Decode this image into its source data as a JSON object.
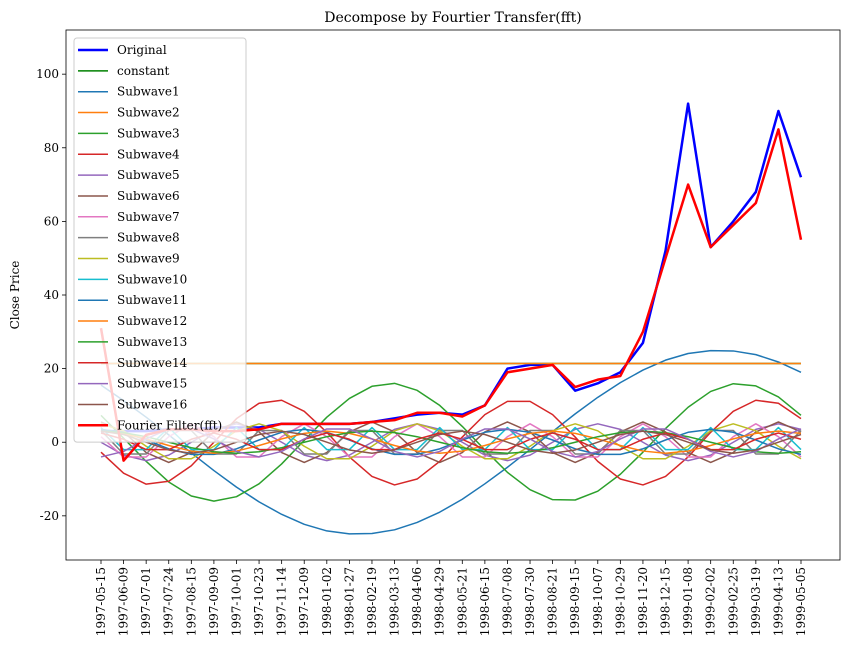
{
  "chart_data": {
    "type": "line",
    "title": "Decompose by Fourtier Transfer(fft)",
    "y_label": "Close Price",
    "categories": [
      "1997-05-15",
      "1997-06-09",
      "1997-07-01",
      "1997-07-24",
      "1997-08-15",
      "1997-09-09",
      "1997-10-01",
      "1997-10-23",
      "1997-11-14",
      "1997-12-09",
      "1998-01-02",
      "1998-01-27",
      "1998-02-19",
      "1998-03-13",
      "1998-04-06",
      "1998-04-29",
      "1998-05-21",
      "1998-06-15",
      "1998-07-08",
      "1998-07-30",
      "1998-08-21",
      "1998-09-15",
      "1998-10-07",
      "1998-10-29",
      "1998-11-20",
      "1998-12-15",
      "1999-01-08",
      "1999-02-02",
      "1999-02-25",
      "1999-03-19",
      "1999-04-13",
      "1999-05-05"
    ],
    "ylim": [
      -32,
      112
    ],
    "yticks": [
      -20,
      0,
      20,
      40,
      60,
      80,
      100
    ],
    "legend": "upper left",
    "series": [
      {
        "name": "Original",
        "color": "blue",
        "linewidth": 2.5,
        "values": [
          3,
          3,
          3,
          3.5,
          3.5,
          4,
          4,
          4,
          5,
          5,
          5,
          5,
          5.5,
          6.5,
          7.5,
          8,
          7.5,
          10,
          20,
          21,
          21,
          14,
          16,
          19,
          27,
          52,
          92,
          53,
          60,
          68,
          90,
          72
        ]
      },
      {
        "name": "constant",
        "color": "green",
        "linewidth": 1.5,
        "values": [
          21.4,
          21.4,
          21.4,
          21.4,
          21.4,
          21.4,
          21.4,
          21.4,
          21.4,
          21.4,
          21.4,
          21.4,
          21.4,
          21.4,
          21.4,
          21.4,
          21.4,
          21.4,
          21.4,
          21.4,
          21.4,
          21.4,
          21.4,
          21.4,
          21.4,
          21.4,
          21.4,
          21.4,
          21.4,
          21.4,
          21.4,
          21.4
        ]
      },
      {
        "name": "Subwave1",
        "color": "#1f77b4",
        "linewidth": 1.5,
        "values": [
          15.5,
          11.3,
          6.8,
          2.0,
          -2.9,
          -7.7,
          -12.2,
          -16.2,
          -19.6,
          -22.3,
          -24.1,
          -24.9,
          -24.8,
          -23.8,
          -21.8,
          -19.0,
          -15.5,
          -11.3,
          -6.8,
          -2.0,
          2.9,
          7.7,
          12.2,
          16.2,
          19.6,
          22.3,
          24.1,
          24.9,
          24.8,
          23.8,
          21.8,
          19.0
        ]
      },
      {
        "name": "Subwave2",
        "color": "#ff7f0e",
        "linewidth": 1.5,
        "values": [
          21.4,
          21.4,
          21.4,
          21.4,
          21.4,
          21.4,
          21.4,
          21.4,
          21.4,
          21.4,
          21.4,
          21.4,
          21.4,
          21.4,
          21.4,
          21.4,
          21.4,
          21.4,
          21.4,
          21.4,
          21.4,
          21.4,
          21.4,
          21.4,
          21.4,
          21.4,
          21.4,
          21.4,
          21.4,
          21.4,
          21.4,
          21.4
        ]
      },
      {
        "name": "Subwave3",
        "color": "#2ca02c",
        "linewidth": 1.5,
        "values": [
          7.3,
          1.1,
          -5.2,
          -10.8,
          -14.6,
          -16.0,
          -14.8,
          -11.3,
          -5.9,
          0.5,
          6.8,
          11.9,
          15.2,
          16.0,
          14.1,
          10.0,
          4.3,
          -2.1,
          -8.2,
          -12.9,
          -15.6,
          -15.7,
          -13.3,
          -8.7,
          -2.7,
          3.7,
          9.5,
          13.8,
          15.9,
          15.3,
          12.3,
          7.3
        ]
      },
      {
        "name": "Subwave4",
        "color": "#d62728",
        "linewidth": 1.5,
        "values": [
          -2.7,
          -8.4,
          -11.4,
          -10.6,
          -6.4,
          0.0,
          6.4,
          10.6,
          11.4,
          8.4,
          2.7,
          -4.0,
          -9.3,
          -11.6,
          -10.0,
          -5.2,
          1.4,
          7.5,
          11.1,
          11.1,
          7.5,
          1.4,
          -5.2,
          -10.0,
          -11.6,
          -9.3,
          -4.0,
          2.7,
          8.4,
          11.4,
          10.6,
          6.4
        ]
      },
      {
        "name": "Subwave5",
        "color": "#9467bd",
        "linewidth": 1.5,
        "values": [
          0,
          -3.5,
          -5,
          -3.5,
          0,
          3.5,
          5,
          3.5,
          0,
          -3.5,
          -5,
          -3.5,
          0,
          3.5,
          5,
          3.5,
          0,
          -3.5,
          -5,
          -3.5,
          0,
          3.5,
          5,
          3.5,
          0,
          -3.5,
          -5,
          -3.5,
          0,
          3.5,
          5,
          3.5
        ]
      },
      {
        "name": "Subwave6",
        "color": "#8c564b",
        "linewidth": 1.5,
        "values": [
          5.5,
          2.8,
          -2.8,
          -5.5,
          -2.8,
          2.8,
          5.5,
          2.8,
          -2.8,
          -5.5,
          -2.8,
          2.8,
          5.5,
          2.8,
          -2.8,
          -5.5,
          -2.8,
          2.8,
          5.5,
          2.8,
          -2.8,
          -5.5,
          -2.8,
          2.8,
          5.5,
          2.8,
          -2.8,
          -5.5,
          -2.8,
          2.8,
          5.5,
          2.8
        ]
      },
      {
        "name": "Subwave7",
        "color": "#e377c2",
        "linewidth": 1.5,
        "values": [
          1.5,
          -4,
          -4,
          1.5,
          5,
          1.5,
          -4,
          -4,
          1.5,
          5,
          1.5,
          -4,
          -4,
          1.5,
          5,
          1.5,
          -4,
          -4,
          1.5,
          5,
          1.5,
          -4,
          -4,
          1.5,
          5,
          1.5,
          -4,
          -4,
          1.5,
          5,
          1.5,
          -4
        ]
      },
      {
        "name": "Subwave8",
        "color": "#7f7f7f",
        "linewidth": 1.5,
        "values": [
          3.2,
          -3.2,
          -3.2,
          3.2,
          3.2,
          -3.2,
          -3.2,
          3.2,
          3.2,
          -3.2,
          -3.2,
          3.2,
          3.2,
          -3.2,
          -3.2,
          3.2,
          3.2,
          -3.2,
          -3.2,
          3.2,
          3.2,
          -3.2,
          -3.2,
          3.2,
          3.2,
          -3.2,
          -3.2,
          3.2,
          3.2,
          -3.2,
          -3.2,
          3.2
        ]
      },
      {
        "name": "Subwave9",
        "color": "#bcbd22",
        "linewidth": 1.5,
        "values": [
          5,
          3.1,
          -1.1,
          -4.5,
          -4.5,
          -1.1,
          3.1,
          5,
          3.1,
          -1.1,
          -4.5,
          -4.5,
          -1.1,
          3.1,
          5,
          3.1,
          -1.1,
          -4.5,
          -4.5,
          -1.1,
          3.1,
          5,
          3.1,
          -1.1,
          -4.5,
          -4.5,
          -1.1,
          3.1,
          5,
          3.1,
          -1.1,
          -4.5
        ]
      },
      {
        "name": "Subwave10",
        "color": "#17becf",
        "linewidth": 1.5,
        "values": [
          4,
          -2,
          -2,
          4,
          -2,
          -2,
          4,
          -2,
          -2,
          4,
          -2,
          -2,
          4,
          -2,
          -2,
          4,
          -2,
          -2,
          4,
          -2,
          -2,
          4,
          -2,
          -2,
          4,
          -2,
          -2,
          4,
          -2,
          -2,
          4,
          -2
        ]
      },
      {
        "name": "Subwave11",
        "color": "#1f77b4",
        "linewidth": 1.5,
        "values": [
          3.5,
          2.7,
          0.6,
          -1.8,
          -3.3,
          -3.3,
          -1.8,
          0.6,
          2.7,
          3.5,
          2.7,
          0.6,
          -1.8,
          -3.3,
          -3.3,
          -1.8,
          0.6,
          2.7,
          3.5,
          2.7,
          0.6,
          -1.8,
          -3.3,
          -3.3,
          -1.8,
          0.6,
          2.7,
          3.5,
          2.7,
          0.6,
          -1.8,
          -3.3
        ]
      },
      {
        "name": "Subwave12",
        "color": "#ff7f0e",
        "linewidth": 1.5,
        "values": [
          3,
          2.4,
          0.9,
          -0.9,
          -2.4,
          -3,
          -2.4,
          -0.9,
          0.9,
          2.4,
          3,
          2.4,
          0.9,
          -0.9,
          -2.4,
          -3,
          -2.4,
          -0.9,
          0.9,
          2.4,
          3,
          2.4,
          0.9,
          -0.9,
          -2.4,
          -3,
          -2.4,
          -0.9,
          0.9,
          2.4,
          3,
          2.4
        ]
      },
      {
        "name": "Subwave13",
        "color": "#2ca02c",
        "linewidth": 1.5,
        "values": [
          3,
          2.6,
          1.5,
          0,
          -1.5,
          -2.6,
          -3,
          -2.6,
          -1.5,
          0,
          1.5,
          2.6,
          3,
          2.6,
          1.5,
          0,
          -1.5,
          -2.6,
          -3,
          -2.6,
          -1.5,
          0,
          1.5,
          2.6,
          3,
          2.6,
          1.5,
          0,
          -1.5,
          -2.6,
          -3,
          -2.6
        ]
      },
      {
        "name": "Subwave14",
        "color": "#d62728",
        "linewidth": 1.5,
        "values": [
          2.5,
          0.8,
          -2,
          -2,
          0.8,
          2.5,
          0.8,
          -2,
          -2,
          0.8,
          2.5,
          0.8,
          -2,
          -2,
          0.8,
          2.5,
          0.8,
          -2,
          -2,
          0.8,
          2.5,
          0.8,
          -2,
          -2,
          0.8,
          2.5,
          0.8,
          -2,
          -2,
          0.8,
          2.5,
          0.8
        ]
      },
      {
        "name": "Subwave15",
        "color": "#9467bd",
        "linewidth": 1.5,
        "values": [
          -4,
          -2.5,
          0.9,
          3.6,
          3.6,
          0.9,
          -2.5,
          -4,
          -2.5,
          0.9,
          3.6,
          3.6,
          0.9,
          -2.5,
          -4,
          -2.5,
          0.9,
          3.6,
          3.6,
          0.9,
          -2.5,
          -4,
          -2.5,
          0.9,
          3.6,
          3.6,
          0.9,
          -2.5,
          -4,
          -2.5,
          0.9,
          3.6
        ]
      },
      {
        "name": "Subwave16",
        "color": "#8c564b",
        "linewidth": 1.5,
        "values": [
          3,
          2.1,
          0,
          -2.1,
          -3,
          -2.1,
          0,
          2.1,
          3,
          2.1,
          0,
          -2.1,
          -3,
          -2.1,
          0,
          2.1,
          3,
          2.1,
          0,
          -2.1,
          -3,
          -2.1,
          0,
          2.1,
          3,
          2.1,
          0,
          -2.1,
          -3,
          -2.1,
          0,
          2.1
        ]
      },
      {
        "name": "Fourier Filter(fft)",
        "color": "red",
        "linewidth": 2.5,
        "values": [
          31,
          -5,
          2,
          3.5,
          3.5,
          3,
          3,
          3.5,
          5,
          5,
          5,
          5,
          5.5,
          6,
          8,
          8,
          7,
          10,
          19,
          20,
          21,
          15,
          17,
          18,
          30,
          50,
          70,
          53,
          59,
          65,
          85,
          55
        ]
      }
    ]
  }
}
